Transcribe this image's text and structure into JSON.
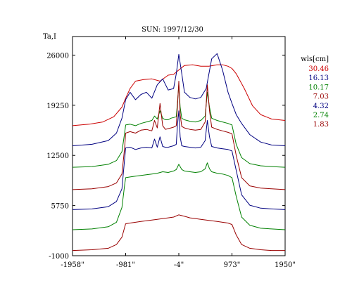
{
  "chart_data": {
    "type": "line",
    "title": "SUN: 1997/12/30",
    "ylabel": "Ta,I",
    "xlabel": "",
    "xlim": [
      -1958,
      1950
    ],
    "ylim": [
      -1000,
      28500
    ],
    "x_ticks": [
      {
        "value": -1958,
        "label": "-1958\""
      },
      {
        "value": -981,
        "label": "-981\""
      },
      {
        "value": -4,
        "label": "-4\""
      },
      {
        "value": 973,
        "label": "973\""
      },
      {
        "value": 1950,
        "label": "1950\""
      }
    ],
    "y_ticks": [
      {
        "value": 26000,
        "label": "26000"
      },
      {
        "value": 19250,
        "label": "19250"
      },
      {
        "value": 12500,
        "label": "12500"
      },
      {
        "value": 5750,
        "label": "5750"
      },
      {
        "value": -1000,
        "label": "-1000"
      }
    ],
    "grid": false,
    "legend": {
      "title": "wls[cm]",
      "position": "right"
    },
    "series": [
      {
        "name": "30.46",
        "color": "#cc0000",
        "x": [
          -1958,
          -1650,
          -1400,
          -1200,
          -1050,
          -981,
          -900,
          -800,
          -650,
          -500,
          -350,
          -200,
          -100,
          -4,
          100,
          250,
          400,
          550,
          700,
          800,
          900,
          973,
          1050,
          1200,
          1350,
          1500,
          1700,
          1950
        ],
        "y": [
          16500,
          16700,
          17000,
          17700,
          19000,
          20200,
          21500,
          22500,
          22700,
          22800,
          22500,
          23300,
          23400,
          24000,
          24600,
          24700,
          24500,
          24500,
          24700,
          24700,
          24500,
          24200,
          23500,
          21500,
          19200,
          18000,
          17400,
          17200
        ]
      },
      {
        "name": "16.13",
        "color": "#000080",
        "x": [
          -1958,
          -1600,
          -1300,
          -1150,
          -1050,
          -981,
          -900,
          -800,
          -700,
          -600,
          -500,
          -400,
          -300,
          -200,
          -150,
          -100,
          -50,
          -4,
          50,
          100,
          200,
          300,
          400,
          500,
          550,
          600,
          700,
          800,
          900,
          973,
          1050,
          1150,
          1300,
          1500,
          1700,
          1950
        ],
        "y": [
          13800,
          14000,
          14500,
          15500,
          17500,
          20000,
          21000,
          20000,
          20700,
          21000,
          20200,
          22000,
          22800,
          21300,
          21400,
          21500,
          23500,
          26100,
          23500,
          21000,
          20300,
          20100,
          20300,
          21500,
          23500,
          25500,
          26200,
          24000,
          21000,
          19500,
          18000,
          16800,
          15300,
          14300,
          13900,
          13800
        ]
      },
      {
        "name": "10.17",
        "color": "#008000",
        "x": [
          -1958,
          -1600,
          -1300,
          -1150,
          -1050,
          -1000,
          -981,
          -900,
          -800,
          -700,
          -600,
          -500,
          -450,
          -400,
          -350,
          -300,
          -250,
          -200,
          -150,
          -100,
          -50,
          -30,
          -4,
          20,
          50,
          100,
          200,
          300,
          400,
          480,
          520,
          560,
          600,
          700,
          800,
          900,
          973,
          1050,
          1150,
          1300,
          1500,
          1700,
          1950
        ],
        "y": [
          10900,
          11000,
          11300,
          11800,
          13000,
          15500,
          16600,
          16700,
          16500,
          16800,
          17000,
          17200,
          17800,
          17400,
          18500,
          17500,
          17300,
          17300,
          17500,
          17600,
          17700,
          19500,
          22000,
          19000,
          17500,
          17300,
          17100,
          17000,
          17200,
          17800,
          21000,
          19000,
          17500,
          17200,
          17000,
          16800,
          16600,
          14000,
          12200,
          11400,
          11100,
          11000,
          10900
        ]
      },
      {
        "name": "7.03",
        "color": "#990000",
        "x": [
          -1958,
          -1600,
          -1300,
          -1150,
          -1050,
          -1000,
          -981,
          -900,
          -800,
          -700,
          -600,
          -500,
          -450,
          -400,
          -350,
          -300,
          -250,
          -200,
          -150,
          -100,
          -50,
          -30,
          -4,
          20,
          50,
          100,
          200,
          300,
          400,
          480,
          520,
          560,
          600,
          700,
          800,
          900,
          973,
          1050,
          1150,
          1300,
          1500,
          1700,
          1950
        ],
        "y": [
          7900,
          8000,
          8300,
          8800,
          10000,
          13500,
          15500,
          15700,
          15500,
          15900,
          16000,
          15800,
          17200,
          16200,
          19500,
          16500,
          16000,
          16100,
          16200,
          16300,
          16500,
          19000,
          22500,
          18000,
          16400,
          16200,
          16000,
          15900,
          16000,
          17000,
          22000,
          18500,
          16300,
          16000,
          15800,
          15600,
          15400,
          12500,
          9500,
          8400,
          8100,
          8000,
          7900
        ]
      },
      {
        "name": "4.32",
        "color": "#000080",
        "x": [
          -1958,
          -1600,
          -1300,
          -1150,
          -1050,
          -1000,
          -981,
          -900,
          -800,
          -700,
          -600,
          -500,
          -450,
          -400,
          -350,
          -300,
          -250,
          -200,
          -150,
          -100,
          -50,
          -30,
          -4,
          20,
          50,
          100,
          200,
          300,
          400,
          480,
          520,
          560,
          600,
          700,
          800,
          900,
          973,
          1050,
          1150,
          1300,
          1500,
          1700,
          1950
        ],
        "y": [
          5200,
          5300,
          5600,
          6300,
          8000,
          12000,
          13500,
          13600,
          13300,
          13500,
          13600,
          13500,
          14700,
          13600,
          15000,
          13700,
          13600,
          13600,
          13700,
          13800,
          14000,
          16500,
          18500,
          15000,
          13800,
          13700,
          13600,
          13500,
          13600,
          14500,
          17200,
          15000,
          13700,
          13500,
          13400,
          13300,
          13100,
          10500,
          7200,
          5800,
          5400,
          5300,
          5200
        ]
      },
      {
        "name": "2.74",
        "color": "#008000",
        "x": [
          -1958,
          -1600,
          -1300,
          -1150,
          -1050,
          -1000,
          -981,
          -900,
          -800,
          -700,
          -600,
          -500,
          -400,
          -300,
          -200,
          -100,
          -50,
          -4,
          50,
          100,
          200,
          300,
          400,
          480,
          520,
          560,
          600,
          700,
          800,
          900,
          973,
          1050,
          1150,
          1300,
          1500,
          1700,
          1950
        ],
        "y": [
          2500,
          2600,
          2900,
          3500,
          5500,
          8500,
          9500,
          9600,
          9700,
          9800,
          9900,
          10000,
          10100,
          10300,
          10200,
          10400,
          10600,
          11300,
          10600,
          10400,
          10300,
          10200,
          10300,
          10700,
          11500,
          10700,
          10300,
          10100,
          10000,
          9800,
          9500,
          7000,
          4200,
          3100,
          2700,
          2600,
          2500
        ]
      },
      {
        "name": "1.83",
        "color": "#990000",
        "x": [
          -1958,
          -1600,
          -1300,
          -1150,
          -1050,
          -1000,
          -981,
          -900,
          -800,
          -700,
          -600,
          -500,
          -400,
          -300,
          -200,
          -100,
          -4,
          100,
          200,
          300,
          400,
          500,
          600,
          700,
          800,
          900,
          973,
          1050,
          1150,
          1300,
          1500,
          1700,
          1950
        ],
        "y": [
          -300,
          -200,
          0,
          500,
          1500,
          2800,
          3300,
          3400,
          3500,
          3600,
          3700,
          3800,
          3900,
          4000,
          4100,
          4200,
          4500,
          4300,
          4100,
          4000,
          3900,
          3800,
          3700,
          3600,
          3500,
          3400,
          3200,
          1800,
          500,
          0,
          -200,
          -300,
          -300
        ]
      }
    ]
  }
}
